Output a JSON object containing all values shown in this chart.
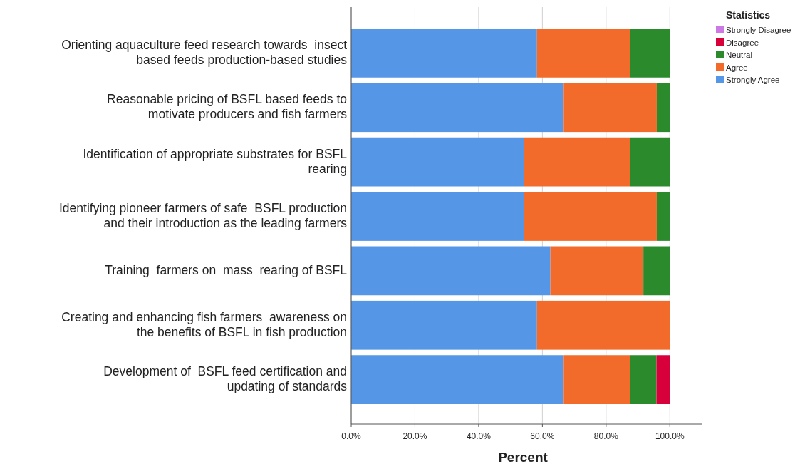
{
  "chart_data": {
    "type": "bar",
    "orientation": "horizontal",
    "stacked": true,
    "xlabel": "Percent",
    "legend_title": "Statistics",
    "legend": "top right",
    "grid": "x",
    "categories": [
      "Orienting aquaculture feed research towards  insect\nbased feeds production-based studies",
      "Reasonable pricing of BSFL based feeds to\nmotivate producers and fish farmers",
      "Identification of appropriate substrates for BSFL\nrearing",
      "Identifying pioneer farmers of safe  BSFL production\nand their introduction as the leading farmers",
      "Training  farmers on  mass  rearing of BSFL",
      "Creating and enhancing fish farmers  awareness on\nthe benefits of BSFL in fish production",
      "Development of  BSFL feed certification and\nupdating of standards"
    ],
    "xlim": [
      0,
      110
    ],
    "xticks": [
      {
        "value": 0,
        "label": "0.0%"
      },
      {
        "value": 20,
        "label": "20.0%"
      },
      {
        "value": 40,
        "label": "40.0%"
      },
      {
        "value": 60,
        "label": "60.0%"
      },
      {
        "value": 80,
        "label": "80.0%"
      },
      {
        "value": 100,
        "label": "100.0%"
      }
    ],
    "series": [
      {
        "name": "Strongly Agree",
        "color": "#5596e6",
        "values": [
          58.3,
          66.7,
          54.2,
          54.2,
          62.5,
          58.3,
          66.7
        ]
      },
      {
        "name": "Agree",
        "color": "#f26b2a",
        "values": [
          29.2,
          29.2,
          33.3,
          41.7,
          29.2,
          41.7,
          20.8
        ]
      },
      {
        "name": "Neutral",
        "color": "#2b8a2b",
        "values": [
          12.5,
          4.2,
          12.5,
          4.2,
          8.3,
          0,
          8.3
        ]
      },
      {
        "name": "Disagree",
        "color": "#d8003a",
        "values": [
          0,
          0,
          0,
          0,
          0,
          0,
          4.2
        ]
      },
      {
        "name": "Strongly Disagree",
        "color": "#cc79e6",
        "values": [
          0,
          0,
          0,
          0,
          0,
          0,
          0
        ]
      }
    ]
  }
}
